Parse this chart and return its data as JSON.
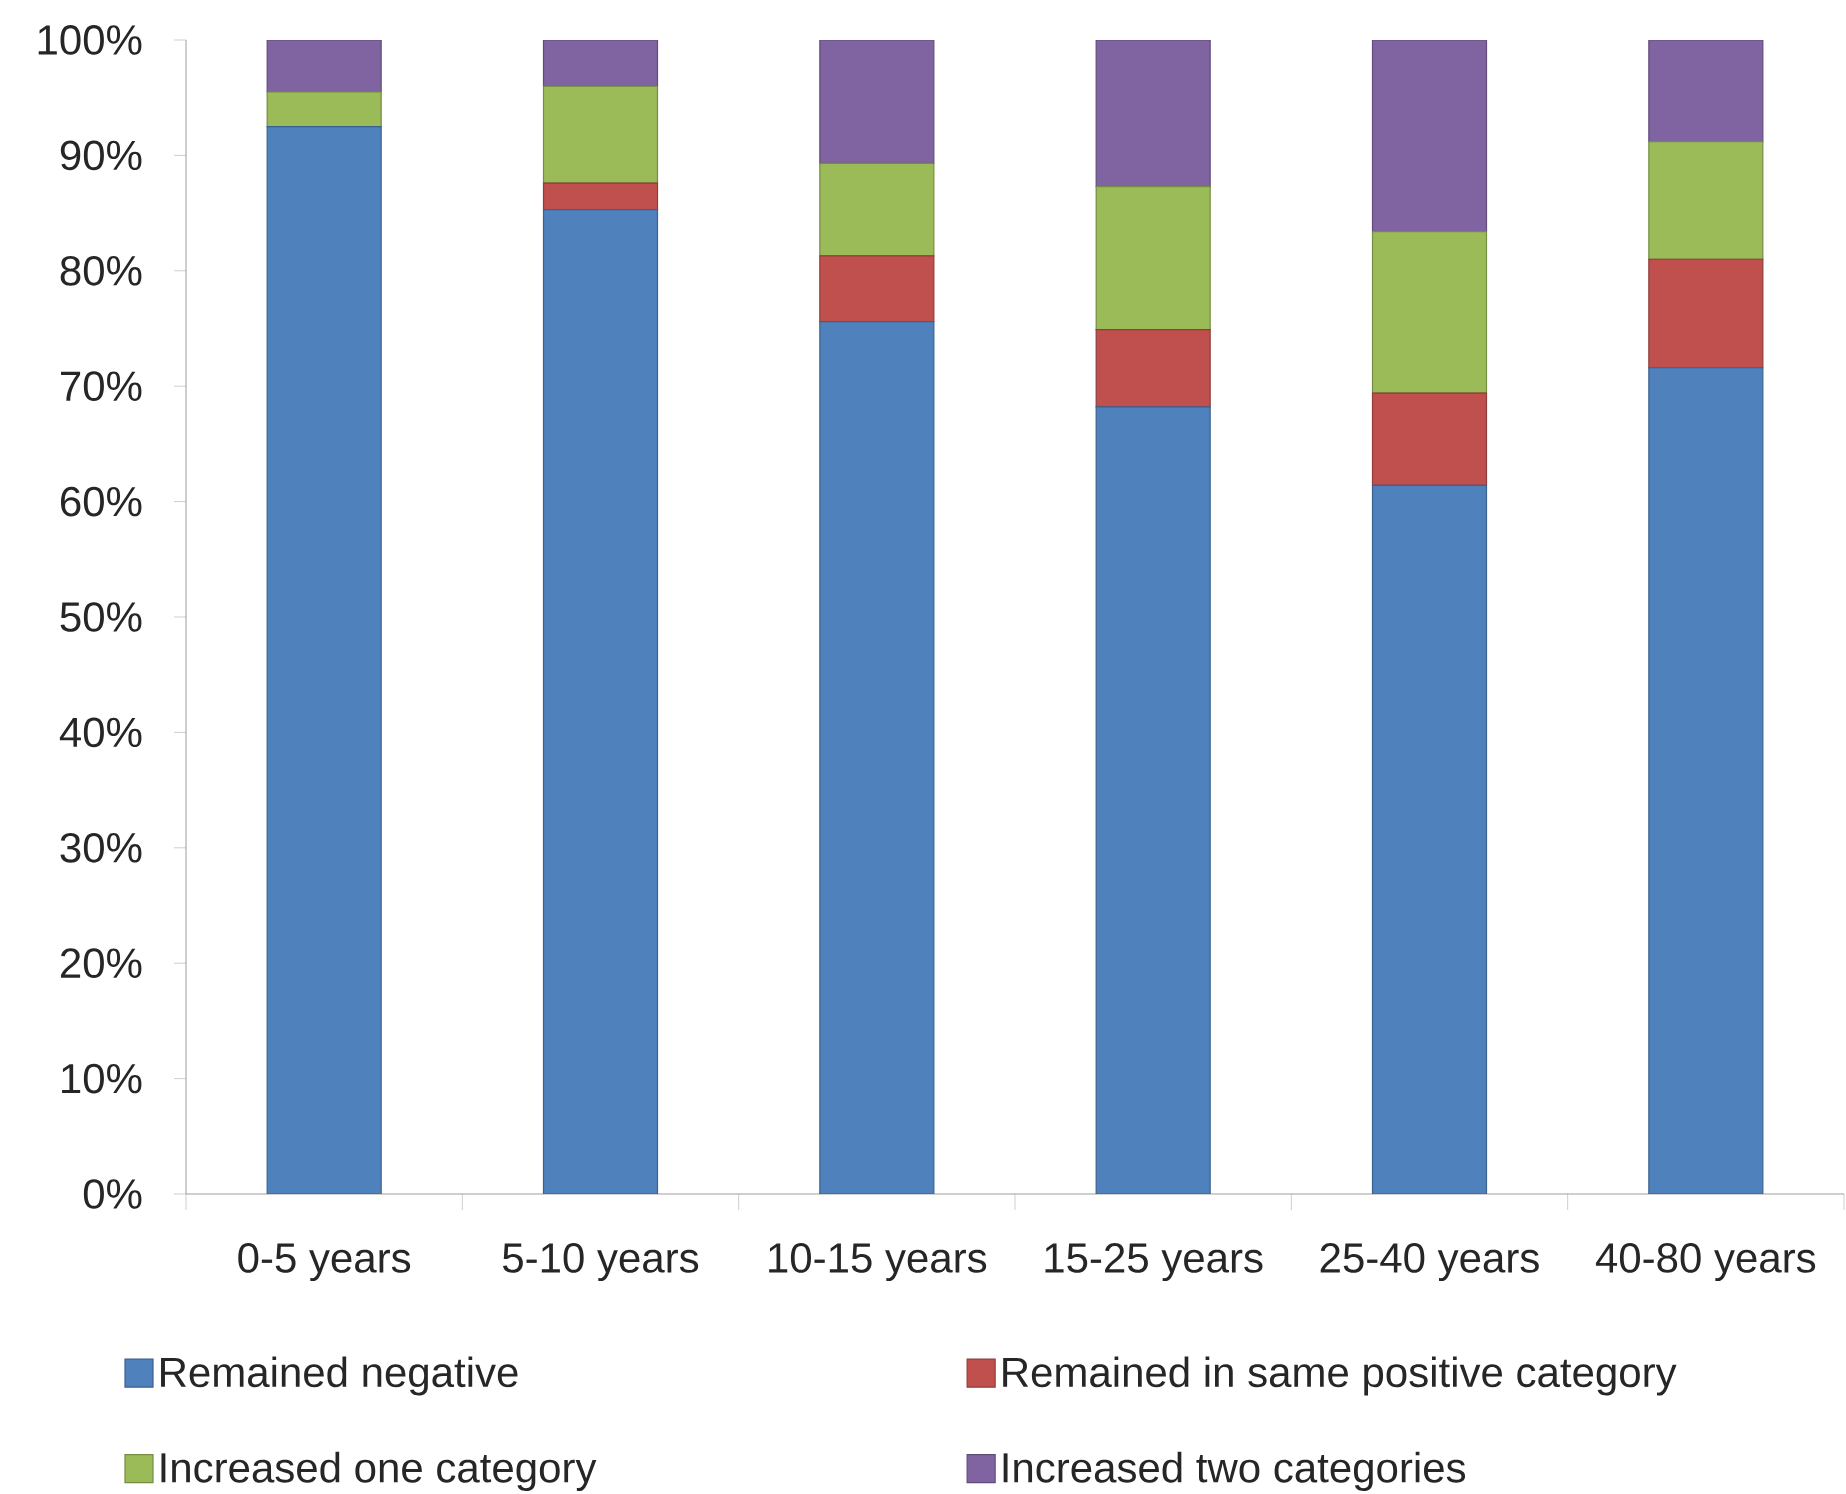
{
  "chart_data": {
    "type": "bar",
    "stacked": true,
    "categories": [
      "0-5 years",
      "5-10 years",
      "10-15 years",
      "15-25 years",
      "25-40 years",
      "40-80 years"
    ],
    "series": [
      {
        "name": "Remained negative",
        "color": "#4f81bd",
        "values": [
          92.5,
          85.3,
          75.6,
          68.2,
          61.4,
          71.6
        ]
      },
      {
        "name": "Remained in same positive category",
        "color": "#c0504d",
        "values": [
          0,
          2.3,
          5.7,
          6.7,
          8.0,
          9.4
        ]
      },
      {
        "name": "Increased one category",
        "color": "#9bbb59",
        "values": [
          3.0,
          8.4,
          8.0,
          12.4,
          14.0,
          10.2
        ]
      },
      {
        "name": "Increased two categories",
        "color": "#8064a2",
        "values": [
          4.5,
          4.0,
          10.7,
          12.7,
          16.6,
          8.8
        ]
      }
    ],
    "ylim": [
      0,
      100
    ],
    "yticks": [
      {
        "value": 0,
        "label": "0%"
      },
      {
        "value": 10,
        "label": "10%"
      },
      {
        "value": 20,
        "label": "20%"
      },
      {
        "value": 30,
        "label": "30%"
      },
      {
        "value": 40,
        "label": "40%"
      },
      {
        "value": 50,
        "label": "50%"
      },
      {
        "value": 60,
        "label": "60%"
      },
      {
        "value": 70,
        "label": "70%"
      },
      {
        "value": 80,
        "label": "80%"
      },
      {
        "value": 90,
        "label": "90%"
      },
      {
        "value": 100,
        "label": "100%"
      }
    ],
    "legend": "bottom"
  }
}
